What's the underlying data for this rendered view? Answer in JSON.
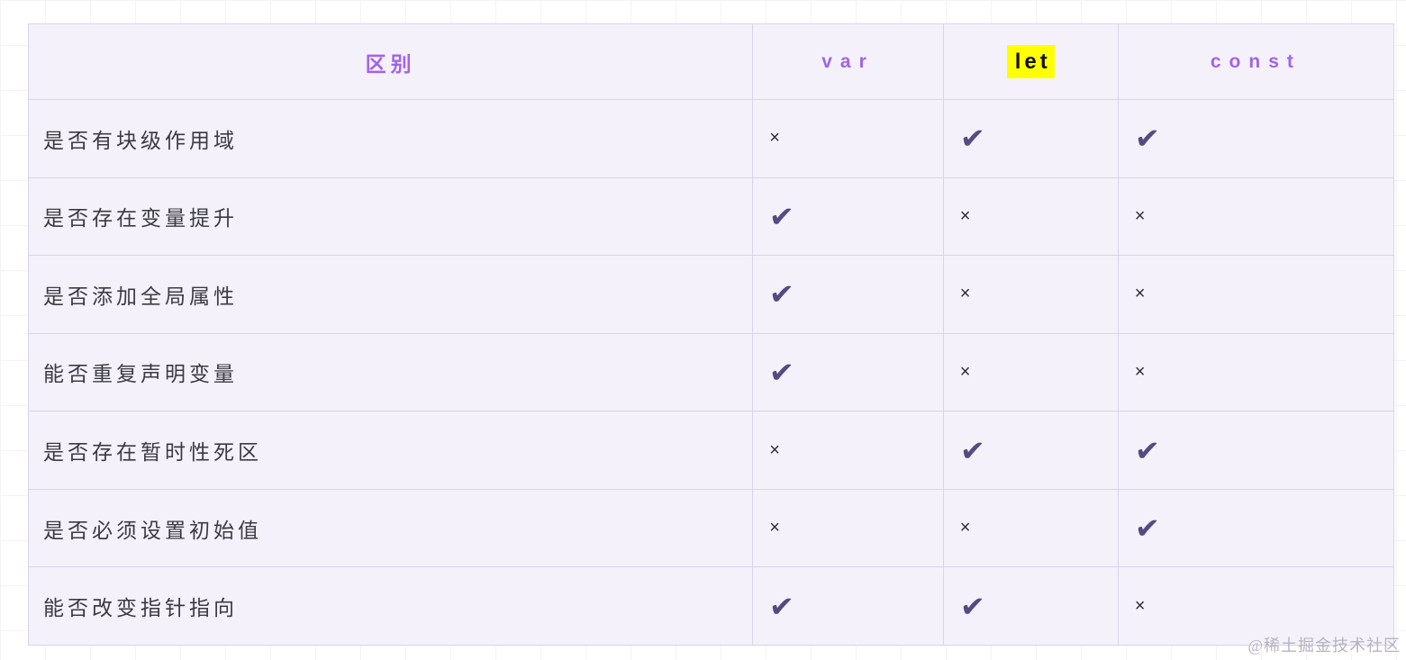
{
  "page": {
    "watermark": "@稀土掘金技术社区",
    "canvas_background": "#ffffff",
    "grid_line_color": "#f3f2f5"
  },
  "table": {
    "title_note": "var vs let vs const comparison table",
    "cell_background": "#f5f1fa",
    "border_color": "#d8d3e8",
    "header_text_color": "#a163e8",
    "let_highlight_color": "#ffff00",
    "check_color": "#564a82",
    "cross_color": "#2e2d36",
    "header": {
      "col0": "区别",
      "col1": "var",
      "col2": "let",
      "col3": "const"
    },
    "rows": [
      {
        "label": "是否有块级作用域",
        "var": "×",
        "let": "✔",
        "const": "✔"
      },
      {
        "label": "是否存在变量提升",
        "var": "✔",
        "let": "×",
        "const": "×"
      },
      {
        "label": "是否添加全局属性",
        "var": "✔",
        "let": "×",
        "const": "×"
      },
      {
        "label": "能否重复声明变量",
        "var": "✔",
        "let": "×",
        "const": "×"
      },
      {
        "label": "是否存在暂时性死区",
        "var": "×",
        "let": "✔",
        "const": "✔"
      },
      {
        "label": "是否必须设置初始值",
        "var": "×",
        "let": "×",
        "const": "✔"
      },
      {
        "label": "能否改变指针指向",
        "var": "✔",
        "let": "✔",
        "const": "×"
      }
    ]
  }
}
